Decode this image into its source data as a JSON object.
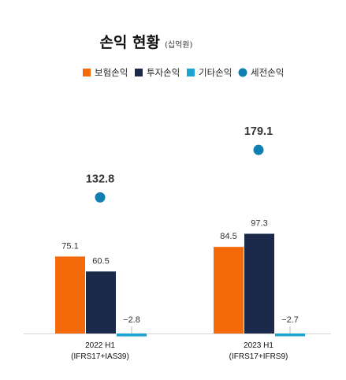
{
  "chart_data": {
    "type": "bar",
    "title": "손익 현황",
    "unit": "(십억원)",
    "categories": [
      {
        "line1": "2022 H1",
        "line2": "(IFRS17+IAS39)"
      },
      {
        "line1": "2023 H1",
        "line2": "(IFRS17+IFRS9)"
      }
    ],
    "series": [
      {
        "name": "보험손익",
        "kind": "bar",
        "color": "#F46A0A",
        "values": [
          75.1,
          84.5
        ],
        "labels": [
          "75.1",
          "84.5"
        ]
      },
      {
        "name": "투자손익",
        "kind": "bar",
        "color": "#1B2A4A",
        "values": [
          60.5,
          97.3
        ],
        "labels": [
          "60.5",
          "97.3"
        ]
      },
      {
        "name": "기타손익",
        "kind": "bar",
        "color": "#1BA3D4",
        "values": [
          -2.8,
          -2.7
        ],
        "labels": [
          "−2.8",
          "−2.7"
        ]
      },
      {
        "name": "세전손익",
        "kind": "point",
        "color": "#0F7FB0",
        "values": [
          132.8,
          179.1
        ],
        "labels": [
          "132.8",
          "179.1"
        ]
      }
    ],
    "legend_position": "top",
    "grid": false
  }
}
